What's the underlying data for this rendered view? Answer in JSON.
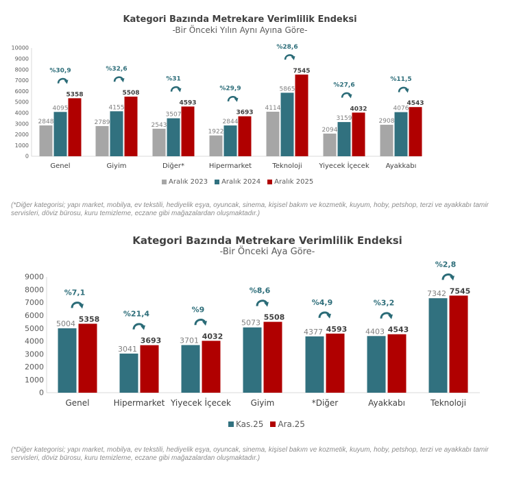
{
  "colors": {
    "gray": "#a6a6a6",
    "teal": "#31717f",
    "red": "#b00000",
    "arrow": "#2a6b77",
    "pct_text": "#2e6e7a",
    "axis": "#d9d9d9",
    "tick_text": "#595959"
  },
  "chart_data": [
    {
      "type": "bar",
      "title": "Kategori Bazında Metrekare Verimlilik Endeksi",
      "subtitle": "-Bir Önceki Yılın Aynı Ayına Göre-",
      "categories": [
        "Genel",
        "Giyim",
        "Diğer*",
        "Hipermarket",
        "Teknoloji",
        "Yiyecek İçecek",
        "Ayakkabı"
      ],
      "series": [
        {
          "name": "Aralık 2023",
          "color": "#a6a6a6",
          "values": [
            2848,
            2789,
            2543,
            1922,
            4114,
            2094,
            2908
          ]
        },
        {
          "name": "Aralık 2024",
          "color": "#31717f",
          "values": [
            4095,
            4155,
            3507,
            2844,
            5865,
            3159,
            4076
          ]
        },
        {
          "name": "Aralık 2025",
          "color": "#b00000",
          "values": [
            5358,
            5508,
            4593,
            3693,
            7545,
            4032,
            4543
          ]
        }
      ],
      "change_labels": [
        "%30,9",
        "%32,6",
        "%31",
        "%29,9",
        "%28,6",
        "%27,6",
        "%11,5"
      ],
      "yticks": [
        "0",
        "1000",
        "2000",
        "3000",
        "4000",
        "5000",
        "6000",
        "7000",
        "8000",
        "9000",
        "10000"
      ],
      "ylim": [
        0,
        10000
      ],
      "legend": "bottom",
      "grid": false,
      "xlabel": "",
      "ylabel": ""
    },
    {
      "type": "bar",
      "title": "Kategori Bazında Metrekare Verimlilik Endeksi",
      "subtitle": "-Bir Önceki Aya Göre-",
      "categories": [
        "Genel",
        "Hipermarket",
        "Yiyecek İçecek",
        "Giyim",
        "*Diğer",
        "Ayakkabı",
        "Teknoloji"
      ],
      "series": [
        {
          "name": "Kas.25",
          "color": "#31717f",
          "values": [
            5004,
            3041,
            3701,
            5073,
            4377,
            4403,
            7342
          ]
        },
        {
          "name": "Ara.25",
          "color": "#b00000",
          "values": [
            5358,
            3693,
            4032,
            5508,
            4593,
            4543,
            7545
          ]
        }
      ],
      "change_labels": [
        "%7,1",
        "%21,4",
        "%9",
        "%8,6",
        "%4,9",
        "%3,2",
        "%2,8"
      ],
      "yticks": [
        "0",
        "1000",
        "2000",
        "3000",
        "4000",
        "5000",
        "6000",
        "7000",
        "8000",
        "9000"
      ],
      "ylim": [
        0,
        9000
      ],
      "legend": "bottom",
      "grid": false,
      "xlabel": "",
      "ylabel": ""
    }
  ],
  "notes": {
    "note1": "(*Diğer kategorisi; yapı market, mobilya, ev tekstili, hediyelik eşya, oyuncak, sinema, kişisel bakım ve kozmetik, kuyum, hoby, petshop, terzi ve ayakkabı tamir servisleri, döviz bürosu, kuru temizleme, eczane gibi mağazalardan oluşmaktadır.)",
    "note2": "(*Diğer kategorisi; yapı market, mobilya, ev tekstili, hediyelik eşya, oyuncak, sinema, kişisel bakım ve kozmetik, kuyum, hoby, petshop, terzi ve ayakkabı tamir servisleri, döviz bürosu, kuru temizleme, eczane gibi mağazalardan oluşmaktadır.)"
  }
}
